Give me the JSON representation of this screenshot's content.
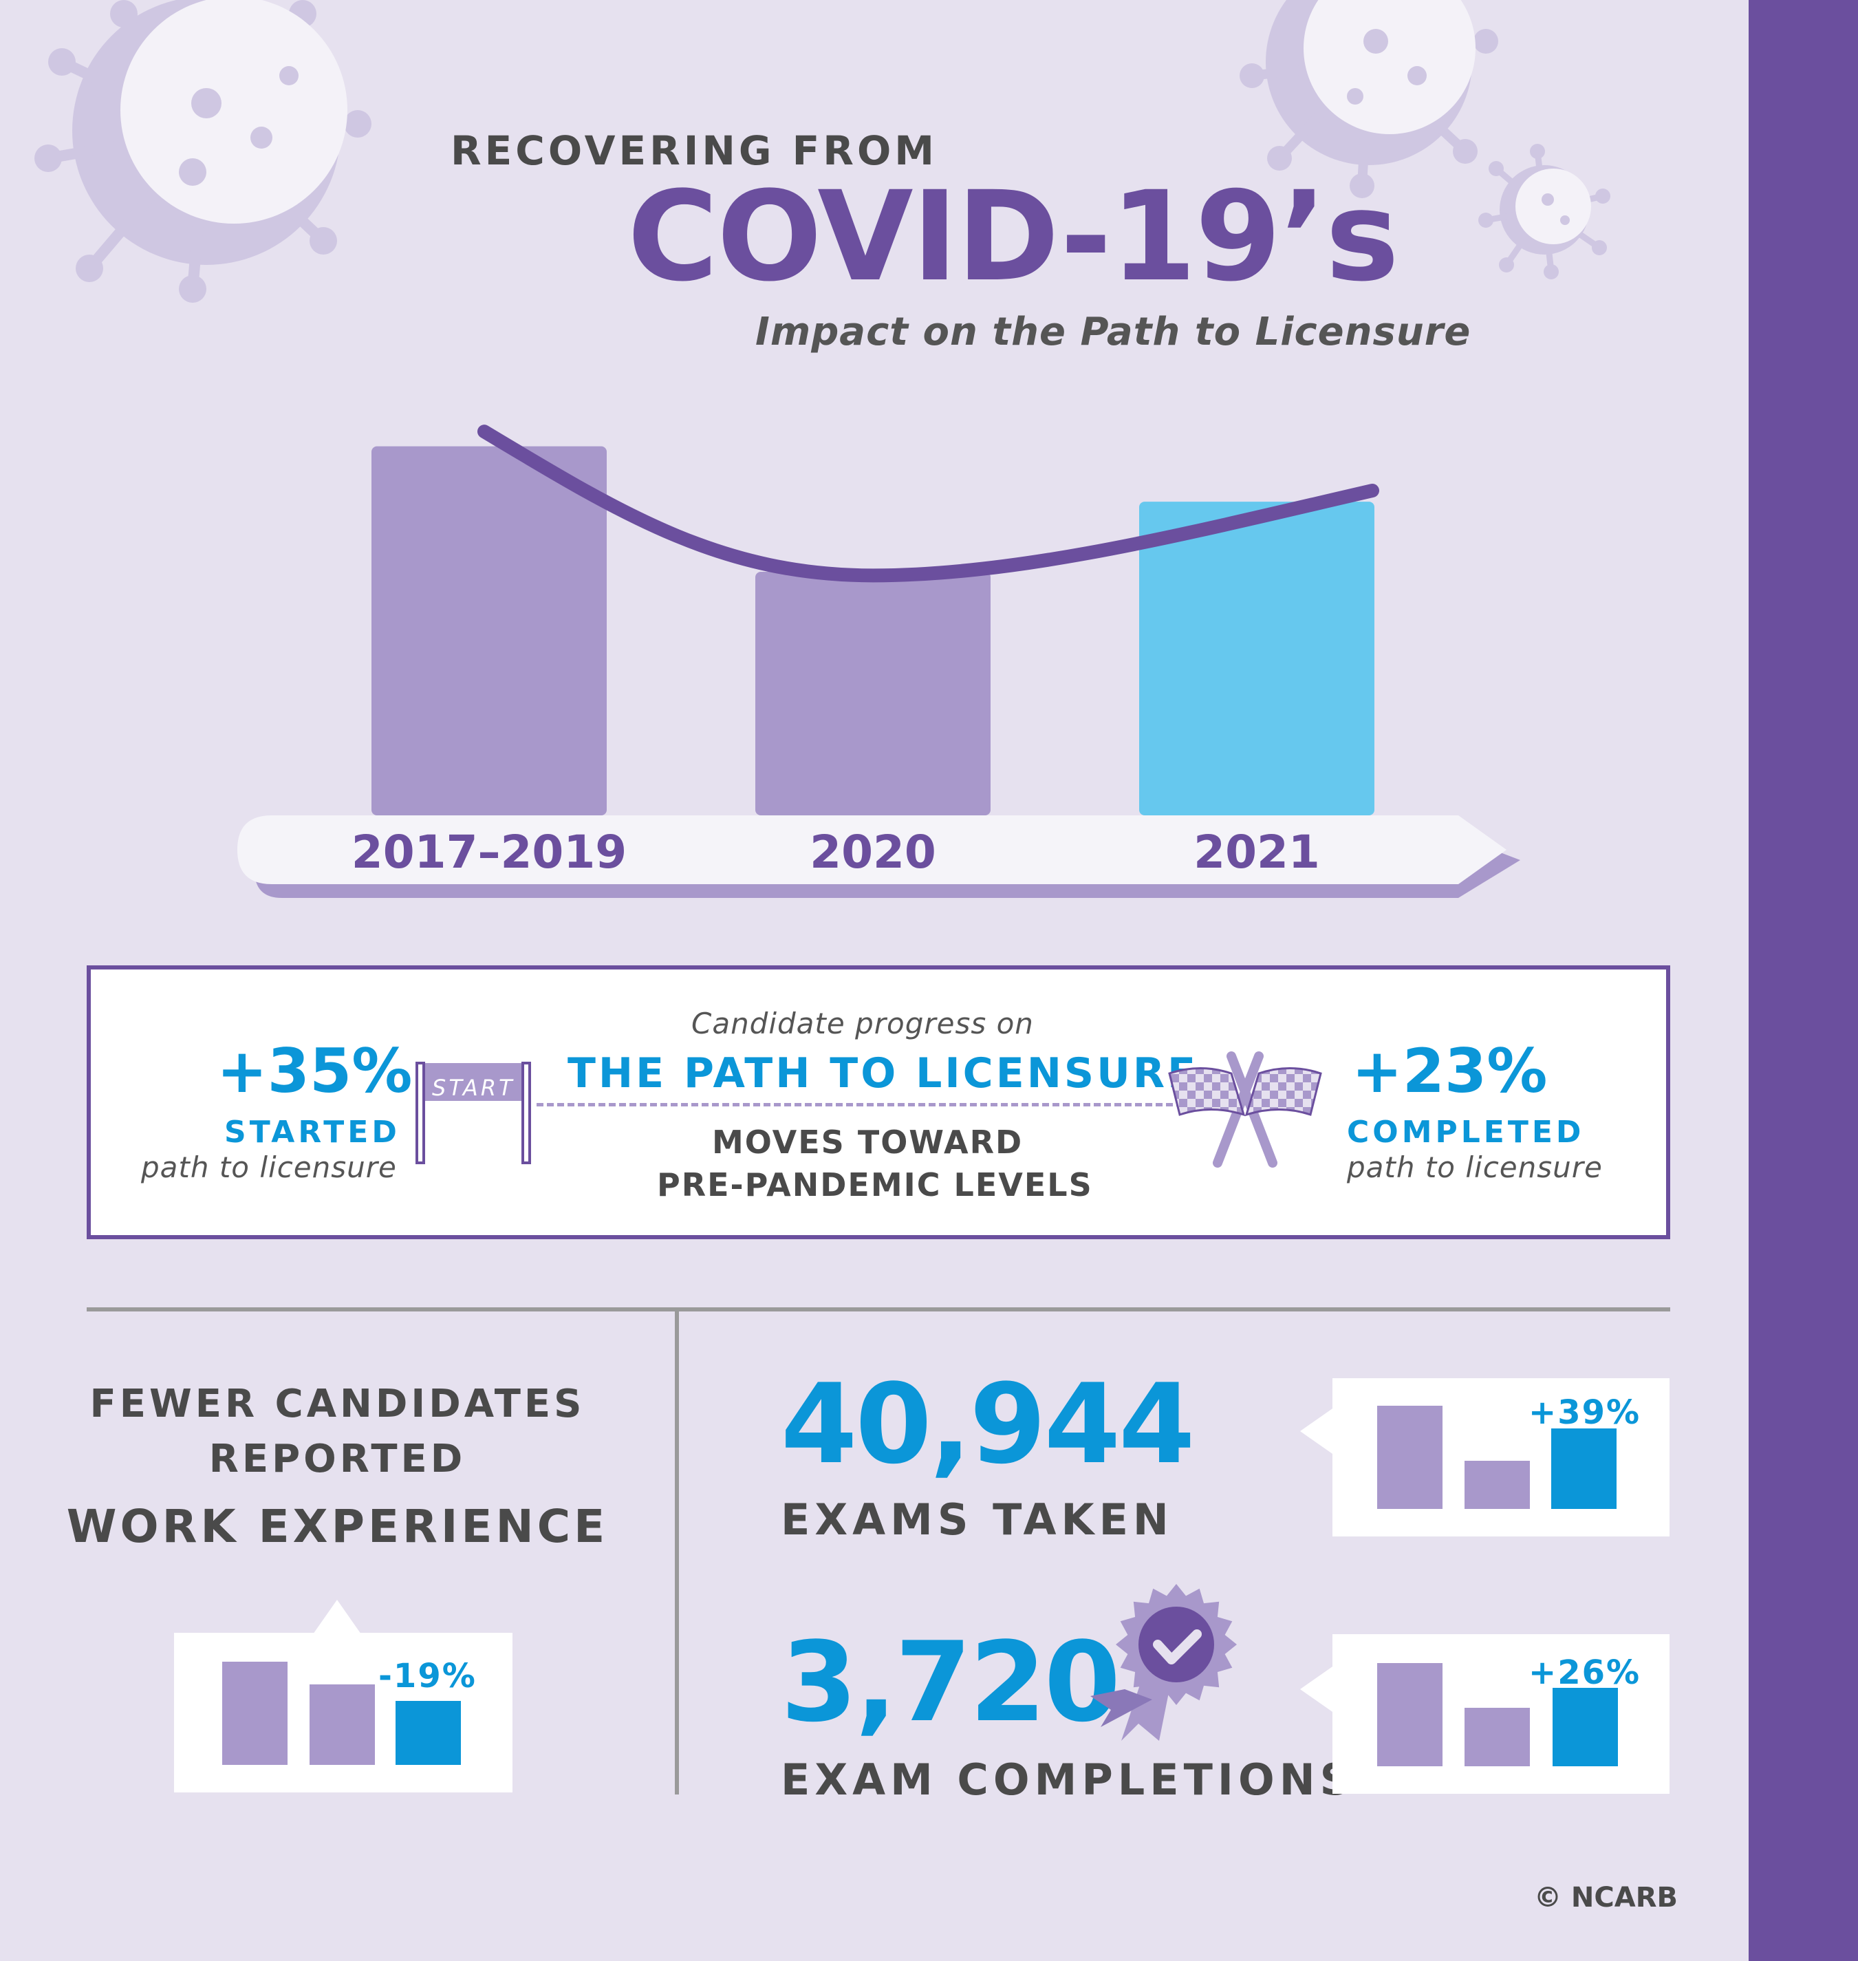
{
  "header": {
    "kicker": "RECOVERING FROM",
    "title": "COVID-19’s",
    "subtitle": "Impact on the Path to Licensure"
  },
  "colors": {
    "purple": "#6B4F9E",
    "lavender": "#A898CB",
    "blue": "#66C8EE",
    "blue_dark": "#0B96D8",
    "background": "#E6E1EF"
  },
  "chart_data": [
    {
      "type": "bar",
      "categories": [
        "2017–2019",
        "2020",
        "2021"
      ],
      "values": [
        100,
        66,
        85
      ],
      "trend_line": [
        104,
        65,
        88
      ],
      "bar_colors": [
        "#A898CB",
        "#A898CB",
        "#66C8EE"
      ],
      "ylim": [
        0,
        110
      ],
      "grid": false
    }
  ],
  "progress": {
    "caption": "Candidate progress on",
    "headline": "THE PATH TO LICENSURE",
    "line1": "MOVES TOWARD",
    "line2": "PRE-PANDEMIC LEVELS",
    "gate_label": "START",
    "started": {
      "pct": "+35%",
      "label": "STARTED",
      "sub": "path to licensure"
    },
    "completed": {
      "pct": "+23%",
      "label": "COMPLETED",
      "sub": "path to licensure"
    }
  },
  "work": {
    "line1": "FEWER CANDIDATES",
    "line2": "REPORTED",
    "line3": "WORK EXPERIENCE",
    "change": "-19%",
    "mini_values": [
      100,
      78,
      62
    ]
  },
  "exams": {
    "number": "40,944",
    "label": "EXAMS TAKEN",
    "change": "+39%",
    "mini_values": [
      100,
      47,
      78
    ]
  },
  "completions": {
    "number": "3,720",
    "label": "EXAM COMPLETIONS",
    "change": "+26%",
    "mini_values": [
      100,
      57,
      76
    ]
  },
  "footer": {
    "copyright": "© NCARB"
  }
}
